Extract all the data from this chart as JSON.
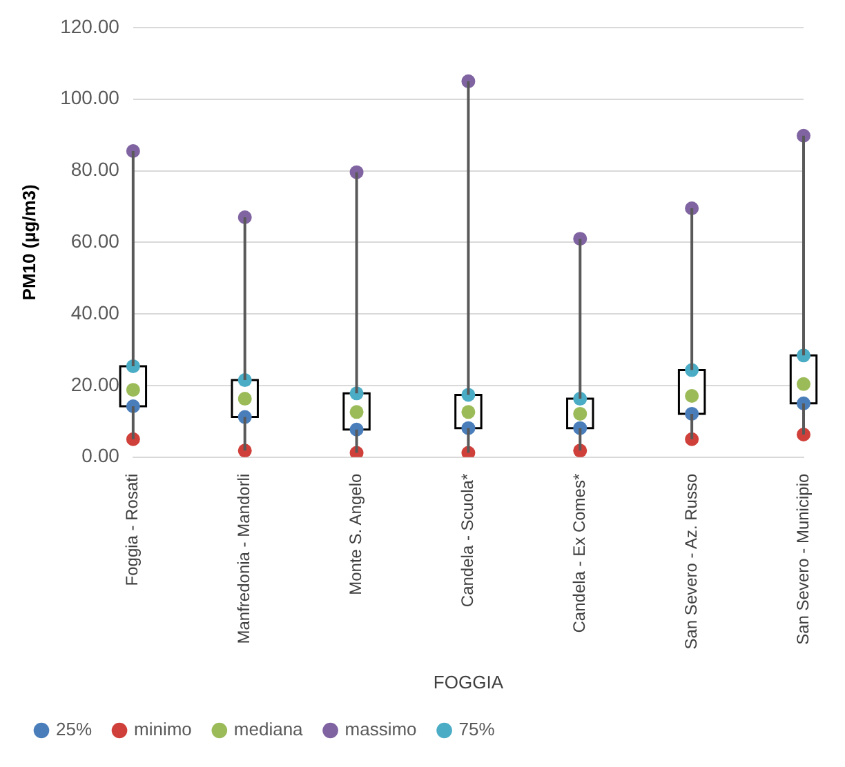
{
  "chart_data": {
    "type": "box",
    "ylabel": "PM10 (µg/m3)",
    "xlabel": "FOGGIA",
    "categories": [
      "Foggia - Rosati",
      "Manfredonia - Mandorli",
      "Monte S. Angelo",
      "Candela - Scuola*",
      "Candela - Ex Comes*",
      "San Severo - Az. Russo",
      "San Severo - Municipio"
    ],
    "boxes": [
      {
        "low": 5.0,
        "q1": 14.2,
        "q3": 25.4,
        "high": 85.5
      },
      {
        "low": 1.8,
        "q1": 11.2,
        "q3": 21.5,
        "high": 67
      },
      {
        "low": 1.2,
        "q1": 7.7,
        "q3": 17.8,
        "high": 79.6
      },
      {
        "low": 1.2,
        "q1": 8.1,
        "q3": 17.4,
        "high": 105
      },
      {
        "low": 1.8,
        "q1": 8.1,
        "q3": 16.3,
        "high": 61
      },
      {
        "low": 5.0,
        "q1": 12.1,
        "q3": 24.3,
        "high": 69.5
      },
      {
        "low": 6.3,
        "q1": 15.0,
        "q3": 28.4,
        "high": 89.8
      }
    ],
    "series": [
      {
        "name": "25%",
        "type": "scatter",
        "color": "#4a7ebb",
        "values": [
          14.2,
          11.2,
          7.7,
          8.1,
          8.1,
          12.1,
          15.0
        ]
      },
      {
        "name": "minimo",
        "type": "scatter",
        "color": "#d0403a",
        "values": [
          5.0,
          1.8,
          1.2,
          1.2,
          1.8,
          5.0,
          6.3
        ]
      },
      {
        "name": "mediana",
        "type": "scatter",
        "color": "#9bbb59",
        "values": [
          18.8,
          16.3,
          12.6,
          12.6,
          12.1,
          17.1,
          20.4
        ]
      },
      {
        "name": "massimo",
        "type": "scatter",
        "color": "#8064a2",
        "values": [
          85.5,
          67,
          79.6,
          105,
          61,
          69.5,
          89.8
        ]
      },
      {
        "name": "75%",
        "type": "scatter",
        "color": "#4bacc6",
        "values": [
          25.4,
          21.5,
          17.8,
          17.4,
          16.3,
          24.3,
          28.4
        ]
      }
    ],
    "ylim": [
      0,
      120
    ],
    "yticks": [
      {
        "value": 0,
        "label": "0.00"
      },
      {
        "value": 20,
        "label": "20.00"
      },
      {
        "value": 40,
        "label": "40.00"
      },
      {
        "value": 60,
        "label": "60.00"
      },
      {
        "value": 80,
        "label": "80.00"
      },
      {
        "value": 100,
        "label": "100.00"
      },
      {
        "value": 120,
        "label": "120.00"
      }
    ],
    "grid": "y",
    "legend": "bottom",
    "marker": "circle"
  }
}
